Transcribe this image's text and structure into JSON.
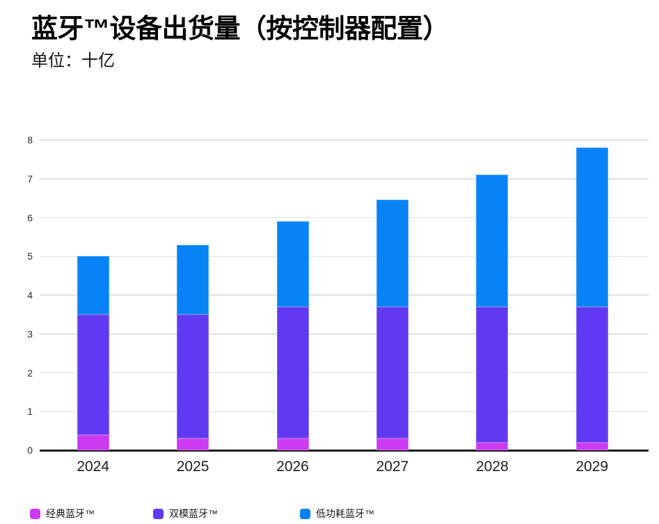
{
  "header": {
    "title": "蓝牙™设备出货量（按控制器配置）",
    "subtitle": "单位：十亿"
  },
  "chart_data": {
    "type": "bar",
    "stacked": true,
    "title": "蓝牙™设备出货量（按控制器配置）",
    "subtitle_unit": "单位：十亿",
    "categories": [
      "2024",
      "2025",
      "2026",
      "2027",
      "2028",
      "2029"
    ],
    "series": [
      {
        "name": "经典蓝牙™",
        "color": "#cc3af2",
        "values": [
          0.4,
          0.3,
          0.3,
          0.3,
          0.2,
          0.2
        ]
      },
      {
        "name": "双模蓝牙™",
        "color": "#6239f2",
        "values": [
          3.1,
          3.2,
          3.4,
          3.4,
          3.5,
          3.5
        ]
      },
      {
        "name": "低功耗蓝牙™",
        "color": "#0783f7",
        "values": [
          1.5,
          1.8,
          2.2,
          2.75,
          3.4,
          4.1
        ]
      }
    ],
    "totals": [
      5.0,
      5.3,
      5.9,
      6.45,
      7.1,
      7.8
    ],
    "xlabel": "",
    "ylabel": "单位：十亿",
    "ylim": [
      0,
      8
    ],
    "yticks": [
      0,
      1,
      2,
      3,
      4,
      5,
      6,
      7,
      8
    ],
    "grid": true,
    "legend_position": "bottom",
    "axis_color": "#1d1d1d",
    "gridline_color": "#e1e1e1"
  }
}
